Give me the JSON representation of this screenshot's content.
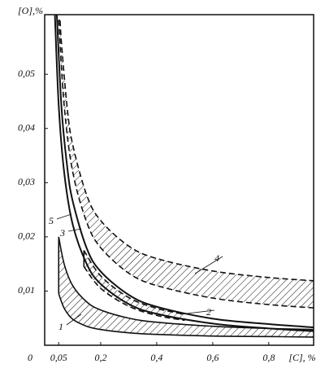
{
  "chart_data": {
    "type": "band",
    "x_label": "[C], %",
    "y_label": "[O],%",
    "xlim": [
      0,
      0.96
    ],
    "ylim": [
      0,
      0.061
    ],
    "xticks": [
      0,
      {
        "value": 0.05,
        "label": "0,05"
      },
      {
        "value": 0.2,
        "label": "0,2"
      },
      {
        "value": 0.4,
        "label": "0,4"
      },
      {
        "value": 0.6,
        "label": "0,6"
      },
      {
        "value": 0.8,
        "label": "0,8"
      }
    ],
    "yticks": [
      {
        "value": 0.01,
        "label": "0,01"
      },
      {
        "value": 0.02,
        "label": "0,02"
      },
      {
        "value": 0.03,
        "label": "0,03"
      },
      {
        "value": 0.04,
        "label": "0,04"
      },
      {
        "value": 0.05,
        "label": "0,05"
      }
    ],
    "color": "#111111",
    "series": [
      {
        "name": "1",
        "style": "solid",
        "hatch": true,
        "upper": {
          "x": [
            0.05,
            0.07,
            0.1,
            0.15,
            0.2,
            0.3,
            0.4,
            0.6,
            0.8,
            0.96
          ],
          "values": [
            0.02,
            0.0149,
            0.011,
            0.008,
            0.0065,
            0.005,
            0.00425,
            0.0035,
            0.0031,
            0.0029
          ]
        },
        "lower": {
          "x": [
            0.05,
            0.07,
            0.1,
            0.15,
            0.2,
            0.3,
            0.4,
            0.6,
            0.8,
            0.96
          ],
          "values": [
            0.0095,
            0.0068,
            0.0048,
            0.0035,
            0.0029,
            0.0023,
            0.002,
            0.0017,
            0.0016,
            0.0015
          ]
        }
      },
      {
        "name": "2",
        "style": "dashed",
        "hatch": true,
        "upper": {
          "x": [
            0.14,
            0.2,
            0.3,
            0.4,
            0.5
          ],
          "values": [
            0.0175,
            0.0128,
            0.0088,
            0.0068,
            0.0057
          ]
        },
        "lower": {
          "x": [
            0.14,
            0.2,
            0.3,
            0.4,
            0.5
          ],
          "values": [
            0.0145,
            0.0105,
            0.0072,
            0.0055,
            0.0046
          ]
        }
      },
      {
        "name": "3",
        "style": "solid",
        "hatch": false,
        "upper": {
          "x": [
            0.042,
            0.06,
            0.08,
            0.1,
            0.15,
            0.2,
            0.3,
            0.4,
            0.6,
            0.8,
            0.96
          ],
          "values": [
            0.0625,
            0.0439,
            0.0331,
            0.0266,
            0.0179,
            0.0136,
            0.0093,
            0.0071,
            0.0049,
            0.0039,
            0.0033
          ]
        }
      },
      {
        "name": "4",
        "style": "dashed",
        "hatch": true,
        "upper": {
          "x": [
            0.055,
            0.06,
            0.08,
            0.1,
            0.15,
            0.2,
            0.3,
            0.4,
            0.6,
            0.8,
            0.96
          ],
          "values": [
            0.0599,
            0.0557,
            0.044,
            0.037,
            0.0277,
            0.023,
            0.0183,
            0.016,
            0.0137,
            0.0125,
            0.0119
          ]
        },
        "lower": {
          "x": [
            0.05,
            0.07,
            0.1,
            0.15,
            0.2,
            0.3,
            0.4,
            0.6,
            0.8,
            0.96
          ],
          "values": [
            0.06,
            0.044,
            0.032,
            0.0227,
            0.018,
            0.0133,
            0.011,
            0.0087,
            0.0075,
            0.0069
          ]
        }
      },
      {
        "name": "5",
        "style": "solid",
        "hatch": false,
        "upper": {
          "x": [
            0.035,
            0.05,
            0.07,
            0.1,
            0.15,
            0.2,
            0.3,
            0.4,
            0.6,
            0.8,
            0.96
          ],
          "values": [
            0.063,
            0.0443,
            0.0317,
            0.0223,
            0.015,
            0.0113,
            0.0076,
            0.0058,
            0.004,
            0.0031,
            0.0026
          ]
        }
      }
    ]
  }
}
